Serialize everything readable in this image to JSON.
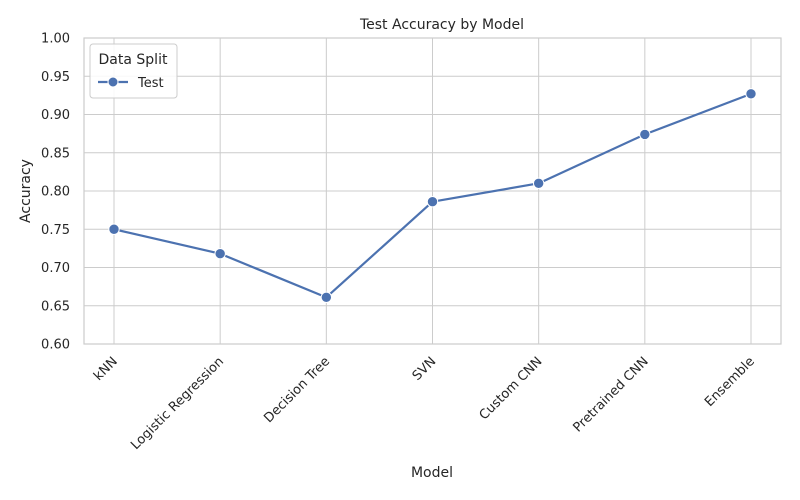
{
  "chart_data": {
    "type": "line",
    "title": "Test Accuracy by Model",
    "xlabel": "Model",
    "ylabel": "Accuracy",
    "categories": [
      "kNN",
      "Logistic Regression",
      "Decision Tree",
      "SVN",
      "Custom CNN",
      "Pretrained CNN",
      "Ensemble"
    ],
    "series": [
      {
        "name": "Test",
        "values": [
          0.75,
          0.718,
          0.661,
          0.786,
          0.81,
          0.874,
          0.927
        ]
      }
    ],
    "ylim": [
      0.6,
      1.0
    ],
    "yticks": [
      "0.60",
      "0.65",
      "0.70",
      "0.75",
      "0.80",
      "0.85",
      "0.90",
      "0.95",
      "1.00"
    ],
    "grid": true,
    "legend": {
      "title": "Data Split",
      "position": "top-left"
    },
    "colors": {
      "series": "#4c72b0",
      "grid": "#cccccc",
      "text": "#262626"
    }
  }
}
